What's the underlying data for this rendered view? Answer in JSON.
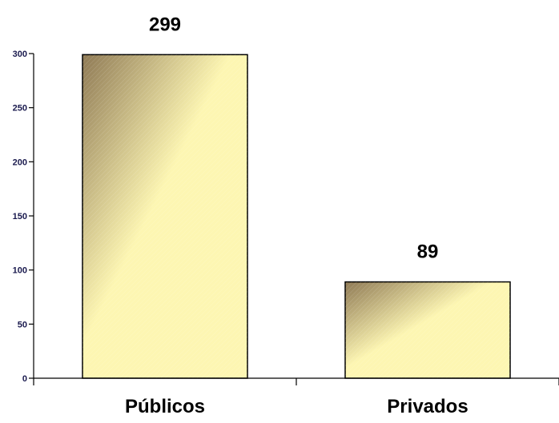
{
  "chart_data": {
    "type": "bar",
    "title": "",
    "xlabel": "",
    "ylabel": "",
    "categories": [
      "Públicos",
      "Privados"
    ],
    "values": [
      299,
      89
    ],
    "data_labels": [
      "299",
      "89"
    ],
    "ylim": [
      0,
      300
    ],
    "yticks": [
      0,
      50,
      100,
      150,
      200,
      250,
      300
    ],
    "ytick_labels": [
      "0",
      "50",
      "100",
      "150",
      "200",
      "250",
      "300"
    ],
    "grid": false,
    "legend": "none",
    "bar_fill": "gradient",
    "colors": {
      "bar_light": "#fdf6b2",
      "bar_dark": "#8f7a55",
      "bar_border": "#000000",
      "axis": "#000000",
      "tick_label": "#1a1a4e",
      "data_label": "#000000"
    }
  }
}
